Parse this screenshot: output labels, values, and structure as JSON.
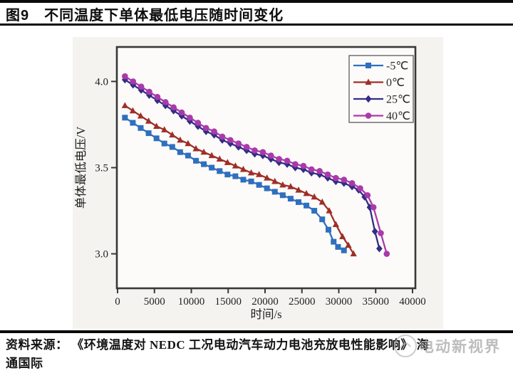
{
  "page": {
    "figure_label": "图9　不同温度下单体最低电压随时间变化",
    "source_line1": "资料来源： 《环境温度对 NEDC 工况电动汽车动力电池充放电性能影响》 海",
    "source_line2": "通国际",
    "watermark_text": "电动新视界"
  },
  "chart_data": {
    "type": "line",
    "title": "",
    "xlabel": "时间/s",
    "ylabel": "单体最低电压/V",
    "xlim": [
      0,
      40000
    ],
    "ylim": [
      2.8,
      4.2
    ],
    "xticks": [
      0,
      5000,
      10000,
      15000,
      20000,
      25000,
      30000,
      35000,
      40000
    ],
    "yticks": [
      3.0,
      3.5,
      4.0
    ],
    "grid": false,
    "legend_position": "top-right",
    "axis_color": "#383838",
    "series": [
      {
        "name": "-5℃",
        "color": "#2f6fbe",
        "marker": "square",
        "points": [
          [
            1000,
            3.79
          ],
          [
            2070,
            3.76
          ],
          [
            3140,
            3.73
          ],
          [
            4210,
            3.7
          ],
          [
            5280,
            3.67
          ],
          [
            6350,
            3.64
          ],
          [
            7420,
            3.62
          ],
          [
            8490,
            3.59
          ],
          [
            9560,
            3.57
          ],
          [
            10630,
            3.54
          ],
          [
            11700,
            3.52
          ],
          [
            12770,
            3.5
          ],
          [
            13840,
            3.48
          ],
          [
            14910,
            3.46
          ],
          [
            15980,
            3.45
          ],
          [
            17050,
            3.43
          ],
          [
            18120,
            3.42
          ],
          [
            19190,
            3.4
          ],
          [
            20260,
            3.38
          ],
          [
            21330,
            3.36
          ],
          [
            22400,
            3.34
          ],
          [
            23470,
            3.32
          ],
          [
            24540,
            3.3
          ],
          [
            25610,
            3.28
          ],
          [
            26680,
            3.25
          ],
          [
            27750,
            3.2
          ],
          [
            28600,
            3.14
          ],
          [
            29300,
            3.07
          ],
          [
            29900,
            3.04
          ],
          [
            30700,
            3.02
          ]
        ]
      },
      {
        "name": "0℃",
        "color": "#9e2f26",
        "marker": "triangle",
        "points": [
          [
            1000,
            3.86
          ],
          [
            2070,
            3.83
          ],
          [
            3140,
            3.8
          ],
          [
            4210,
            3.77
          ],
          [
            5280,
            3.74
          ],
          [
            6350,
            3.72
          ],
          [
            7420,
            3.69
          ],
          [
            8490,
            3.66
          ],
          [
            9560,
            3.64
          ],
          [
            10630,
            3.61
          ],
          [
            11700,
            3.59
          ],
          [
            12770,
            3.57
          ],
          [
            13840,
            3.55
          ],
          [
            14910,
            3.53
          ],
          [
            15980,
            3.51
          ],
          [
            17050,
            3.49
          ],
          [
            18120,
            3.47
          ],
          [
            19190,
            3.46
          ],
          [
            20260,
            3.44
          ],
          [
            21330,
            3.42
          ],
          [
            22400,
            3.4
          ],
          [
            23470,
            3.39
          ],
          [
            24540,
            3.37
          ],
          [
            25610,
            3.35
          ],
          [
            26680,
            3.33
          ],
          [
            27750,
            3.3
          ],
          [
            28700,
            3.25
          ],
          [
            29600,
            3.17
          ],
          [
            30500,
            3.1
          ],
          [
            31300,
            3.05
          ],
          [
            32000,
            3.0
          ]
        ]
      },
      {
        "name": "25℃",
        "color": "#322e85",
        "marker": "diamond",
        "points": [
          [
            1000,
            4.01
          ],
          [
            2100,
            3.98
          ],
          [
            3200,
            3.95
          ],
          [
            4300,
            3.92
          ],
          [
            5400,
            3.89
          ],
          [
            6500,
            3.86
          ],
          [
            7600,
            3.83
          ],
          [
            8700,
            3.8
          ],
          [
            9800,
            3.77
          ],
          [
            10900,
            3.74
          ],
          [
            12000,
            3.71
          ],
          [
            13100,
            3.69
          ],
          [
            14200,
            3.66
          ],
          [
            15300,
            3.64
          ],
          [
            16400,
            3.62
          ],
          [
            17500,
            3.6
          ],
          [
            18600,
            3.58
          ],
          [
            19700,
            3.57
          ],
          [
            20800,
            3.55
          ],
          [
            21900,
            3.53
          ],
          [
            23000,
            3.52
          ],
          [
            24100,
            3.5
          ],
          [
            25200,
            3.49
          ],
          [
            26300,
            3.47
          ],
          [
            27400,
            3.46
          ],
          [
            28500,
            3.44
          ],
          [
            29600,
            3.42
          ],
          [
            30700,
            3.41
          ],
          [
            31800,
            3.39
          ],
          [
            32700,
            3.37
          ],
          [
            33500,
            3.33
          ],
          [
            34200,
            3.27
          ],
          [
            34900,
            3.13
          ],
          [
            35500,
            3.03
          ]
        ]
      },
      {
        "name": "40℃",
        "color": "#aa39ab",
        "marker": "circle",
        "points": [
          [
            1000,
            4.03
          ],
          [
            2100,
            4.0
          ],
          [
            3200,
            3.97
          ],
          [
            4300,
            3.94
          ],
          [
            5400,
            3.91
          ],
          [
            6500,
            3.88
          ],
          [
            7600,
            3.85
          ],
          [
            8700,
            3.82
          ],
          [
            9800,
            3.79
          ],
          [
            10900,
            3.76
          ],
          [
            12000,
            3.73
          ],
          [
            13100,
            3.71
          ],
          [
            14200,
            3.68
          ],
          [
            15300,
            3.66
          ],
          [
            16400,
            3.64
          ],
          [
            17500,
            3.62
          ],
          [
            18600,
            3.6
          ],
          [
            19700,
            3.59
          ],
          [
            20800,
            3.57
          ],
          [
            21900,
            3.55
          ],
          [
            23000,
            3.54
          ],
          [
            24100,
            3.52
          ],
          [
            25200,
            3.51
          ],
          [
            26300,
            3.49
          ],
          [
            27400,
            3.48
          ],
          [
            28500,
            3.46
          ],
          [
            29600,
            3.44
          ],
          [
            30700,
            3.43
          ],
          [
            31800,
            3.41
          ],
          [
            32900,
            3.38
          ],
          [
            33900,
            3.34
          ],
          [
            34700,
            3.27
          ],
          [
            35700,
            3.12
          ],
          [
            36500,
            3.0
          ]
        ]
      }
    ]
  }
}
